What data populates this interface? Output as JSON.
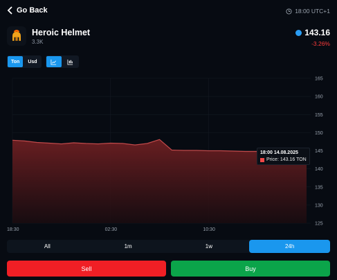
{
  "header": {
    "back_label": "Go Back",
    "clock_text": "18:00 UTC+1"
  },
  "asset": {
    "name": "Heroic Helmet",
    "subtitle": "3.3K",
    "price": "143.16",
    "change": "-3.26%"
  },
  "currency_toggle": {
    "options": [
      "Ton",
      "Usd"
    ],
    "active": "Ton"
  },
  "chart_type_toggle": {
    "options": [
      "line-chart-icon",
      "candlestick-icon"
    ],
    "active": "line-chart-icon"
  },
  "colors": {
    "accent": "#1a97ee",
    "sell": "#f01f25",
    "buy": "#0ba44a",
    "down": "#ff3b3b",
    "line": "#c0494a"
  },
  "chart_data": {
    "type": "area",
    "x": [
      "18:30",
      "19:30",
      "20:30",
      "21:30",
      "22:30",
      "23:30",
      "00:30",
      "01:30",
      "02:30",
      "03:30",
      "04:30",
      "05:30",
      "06:30",
      "07:30",
      "08:30",
      "09:30",
      "10:30",
      "11:30",
      "12:30",
      "13:30",
      "14:30",
      "15:30",
      "16:30",
      "17:30",
      "18:00"
    ],
    "values": [
      147.9,
      147.7,
      147.3,
      147.1,
      146.9,
      147.2,
      147.0,
      146.9,
      147.1,
      147.0,
      146.6,
      147.0,
      148.1,
      145.2,
      145.1,
      145.1,
      145.0,
      145.0,
      144.9,
      144.8,
      144.8,
      144.8,
      144.7,
      143.3,
      143.16
    ],
    "y_ticks": [
      125,
      130,
      135,
      140,
      145,
      150,
      155,
      160,
      165
    ],
    "ylim": [
      125,
      165
    ],
    "x_ticks": [
      "18:30",
      "02:30",
      "10:30"
    ],
    "grid": true,
    "tooltip": {
      "time": "18:00 14.08.2025",
      "label": "Price: 143.16 TON"
    }
  },
  "periods": {
    "options": [
      "All",
      "1m",
      "1w",
      "24h"
    ],
    "active": "24h"
  },
  "actions": {
    "sell_label": "Sell",
    "buy_label": "Buy"
  }
}
